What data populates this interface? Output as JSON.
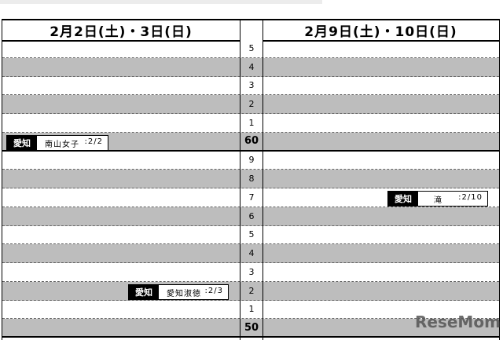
{
  "header": {
    "left": "2月2日(土)・3日(日)",
    "right": "2月9日(土)・10日(日)"
  },
  "rows": [
    {
      "label": "5",
      "gray": false
    },
    {
      "label": "4",
      "gray": true
    },
    {
      "label": "3",
      "gray": false
    },
    {
      "label": "2",
      "gray": true
    },
    {
      "label": "1",
      "gray": false
    },
    {
      "label": "60",
      "gray": true,
      "bold": true
    },
    {
      "label": "9",
      "gray": false
    },
    {
      "label": "8",
      "gray": true
    },
    {
      "label": "7",
      "gray": false
    },
    {
      "label": "6",
      "gray": true
    },
    {
      "label": "5",
      "gray": false
    },
    {
      "label": "4",
      "gray": true
    },
    {
      "label": "3",
      "gray": false
    },
    {
      "label": "2",
      "gray": true
    },
    {
      "label": "1",
      "gray": false
    },
    {
      "label": "50",
      "gray": true,
      "bold": true
    }
  ],
  "entries": [
    {
      "pref": "愛知",
      "school": "南山女子",
      "date": ":2/2"
    },
    {
      "pref": "愛知",
      "school": "愛知淑徳",
      "date": ":2/3"
    },
    {
      "pref": "愛知",
      "school": "滝",
      "date": ":2/10"
    }
  ],
  "watermark": "ReseMom"
}
